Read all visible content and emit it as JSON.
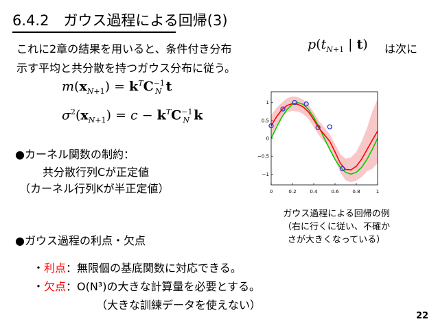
{
  "title": "6.4.2　ガウス過程による回帰(3)",
  "intro": {
    "line1_prefix": "これに2章の結果を用いると、条件付き分布",
    "line1_suffix": "は次に",
    "line2": "示す平均と共分散を持つガウス分布に従う。"
  },
  "bullet1": {
    "heading": "●カーネル関数の制約：",
    "line1": "共分散行列Cが正定値",
    "line2": "（カーネル行列Kが半正定値）"
  },
  "bullet2": {
    "heading": "●ガウス過程の利点・欠点"
  },
  "pros": {
    "dot": "・",
    "label": "利点",
    "text": "：無限個の基底関数に対応できる。"
  },
  "cons": {
    "dot": "・",
    "label": "欠点",
    "text": "：O(N³)の大きな計算量を必要とする。",
    "subtext": "（大きな訓練データを使えない）"
  },
  "caption": {
    "line1": "ガウス過程による回帰の例",
    "line2": "（右に行くに従い、不確か",
    "line3": "さが大きくなっている）"
  },
  "page_number": "22",
  "chart_data": {
    "type": "line",
    "xlim": [
      0,
      1
    ],
    "ylim": [
      -1.3,
      1.3
    ],
    "x_ticks": [
      "0",
      "0.2",
      "0.4",
      "0.6",
      "0.8",
      "1"
    ],
    "y_ticks": [
      "1",
      "0.5",
      "0",
      "−0.5",
      "−1"
    ],
    "x_tick_values": [
      0,
      0.2,
      0.4,
      0.6,
      0.8,
      1
    ],
    "y_tick_values": [
      1,
      0.5,
      0,
      -0.5,
      -1
    ],
    "curve_x": [
      0,
      0.05,
      0.1,
      0.15,
      0.2,
      0.25,
      0.3,
      0.35,
      0.4,
      0.45,
      0.5,
      0.55,
      0.6,
      0.65,
      0.7,
      0.75,
      0.8,
      0.85,
      0.9,
      0.95,
      1.0
    ],
    "series": [
      {
        "color": "#00cc00",
        "values": [
          0,
          0.309,
          0.588,
          0.809,
          0.951,
          1.0,
          0.951,
          0.809,
          0.588,
          0.309,
          0,
          -0.309,
          -0.588,
          -0.809,
          -0.951,
          -1.0,
          -0.951,
          -0.809,
          -0.588,
          -0.309,
          0
        ]
      },
      {
        "color": "#ff0000",
        "values": [
          0.35,
          0.6,
          0.8,
          0.92,
          0.97,
          0.95,
          0.88,
          0.74,
          0.52,
          0.28,
          0.1,
          -0.08,
          -0.38,
          -0.7,
          -0.87,
          -0.88,
          -0.78,
          -0.58,
          -0.32,
          -0.05,
          0.2
        ]
      }
    ],
    "band_halfwidth": [
      0.3,
      0.25,
      0.2,
      0.2,
      0.2,
      0.2,
      0.2,
      0.2,
      0.2,
      0.2,
      0.2,
      0.2,
      0.22,
      0.25,
      0.3,
      0.35,
      0.4,
      0.5,
      0.6,
      0.8,
      0.9
    ],
    "band_color": "#f8c8c8",
    "points_color": "#3333cc",
    "points": [
      {
        "x": 0.0,
        "y": 0.35
      },
      {
        "x": 0.11,
        "y": 0.82
      },
      {
        "x": 0.22,
        "y": 1.0
      },
      {
        "x": 0.33,
        "y": 0.96
      },
      {
        "x": 0.44,
        "y": 0.3
      },
      {
        "x": 0.55,
        "y": 0.32
      },
      {
        "x": 0.67,
        "y": -0.85
      }
    ]
  }
}
